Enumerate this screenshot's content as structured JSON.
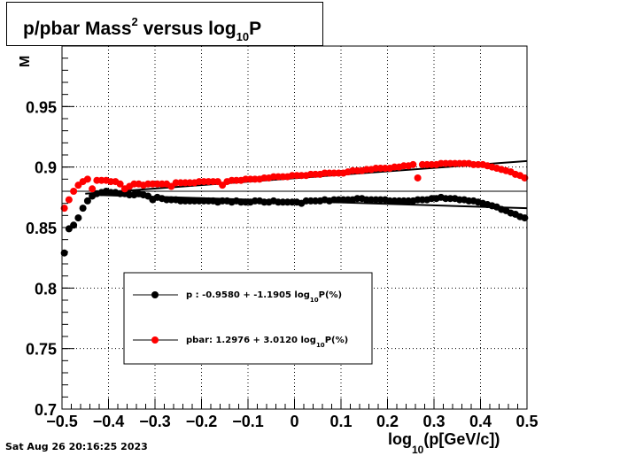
{
  "chart_data": {
    "type": "scatter",
    "title_main": "p/pbar Mass",
    "title_sup": "2",
    "title_mid": " versus log",
    "title_sub": "10",
    "title_end": "P",
    "xlabel_pre": "log",
    "xlabel_sub": "10",
    "xlabel_post": "(p[GeV/c])",
    "ylabel_fragment": "M",
    "xlim": [
      -0.5,
      0.5
    ],
    "ylim": [
      0.7,
      1.0
    ],
    "x_ticks": [
      "-0.5",
      "-0.4",
      "-0.3",
      "-0.2",
      "-0.1",
      "0",
      "0.1",
      "0.2",
      "0.3",
      "0.4",
      "0.5"
    ],
    "y_ticks": [
      "0.7",
      "0.75",
      "0.8",
      "0.85",
      "0.9",
      "0.95"
    ],
    "grid": true,
    "reference_line_y": 0.88,
    "legend_position": "lower-left",
    "series": [
      {
        "name": "p   : -0.9580 + -1.1905 log",
        "legend_sub": "10",
        "legend_end": "P(%)",
        "color": "#000000",
        "x": [
          -0.495,
          -0.485,
          -0.475,
          -0.465,
          -0.455,
          -0.445,
          -0.435,
          -0.425,
          -0.415,
          -0.405,
          -0.395,
          -0.385,
          -0.375,
          -0.365,
          -0.355,
          -0.345,
          -0.335,
          -0.325,
          -0.315,
          -0.305,
          -0.295,
          -0.285,
          -0.275,
          -0.265,
          -0.255,
          -0.245,
          -0.235,
          -0.225,
          -0.215,
          -0.205,
          -0.195,
          -0.185,
          -0.175,
          -0.165,
          -0.155,
          -0.145,
          -0.135,
          -0.125,
          -0.115,
          -0.105,
          -0.095,
          -0.085,
          -0.075,
          -0.065,
          -0.055,
          -0.045,
          -0.035,
          -0.025,
          -0.015,
          -0.005,
          0.005,
          0.015,
          0.025,
          0.035,
          0.045,
          0.055,
          0.065,
          0.075,
          0.085,
          0.095,
          0.105,
          0.115,
          0.125,
          0.135,
          0.145,
          0.155,
          0.165,
          0.175,
          0.185,
          0.195,
          0.205,
          0.215,
          0.225,
          0.235,
          0.245,
          0.255,
          0.265,
          0.275,
          0.285,
          0.295,
          0.305,
          0.315,
          0.325,
          0.335,
          0.345,
          0.355,
          0.365,
          0.375,
          0.385,
          0.395,
          0.405,
          0.415,
          0.425,
          0.435,
          0.445,
          0.455,
          0.465,
          0.475,
          0.485,
          0.495
        ],
        "y": [
          0.829,
          0.849,
          0.852,
          0.858,
          0.866,
          0.872,
          0.876,
          0.878,
          0.879,
          0.88,
          0.879,
          0.879,
          0.878,
          0.878,
          0.877,
          0.877,
          0.878,
          0.877,
          0.876,
          0.873,
          0.875,
          0.874,
          0.873,
          0.873,
          0.873,
          0.872,
          0.872,
          0.872,
          0.872,
          0.872,
          0.872,
          0.872,
          0.872,
          0.871,
          0.872,
          0.872,
          0.871,
          0.872,
          0.871,
          0.871,
          0.871,
          0.872,
          0.872,
          0.871,
          0.871,
          0.872,
          0.871,
          0.871,
          0.871,
          0.871,
          0.871,
          0.87,
          0.872,
          0.872,
          0.872,
          0.872,
          0.873,
          0.872,
          0.873,
          0.873,
          0.873,
          0.873,
          0.873,
          0.874,
          0.874,
          0.873,
          0.873,
          0.873,
          0.873,
          0.873,
          0.872,
          0.872,
          0.872,
          0.872,
          0.872,
          0.872,
          0.873,
          0.873,
          0.873,
          0.874,
          0.874,
          0.875,
          0.874,
          0.874,
          0.874,
          0.873,
          0.873,
          0.872,
          0.872,
          0.871,
          0.87,
          0.869,
          0.868,
          0.867,
          0.865,
          0.864,
          0.862,
          0.861,
          0.859,
          0.858
        ],
        "fit": [
          [
            -0.43,
            0.877
          ],
          [
            0.5,
            0.866
          ]
        ]
      },
      {
        "name": "pbar: 1.2976 + 3.0120 log",
        "legend_sub": "10",
        "legend_end": "P(%)",
        "color": "#ff0000",
        "x": [
          -0.495,
          -0.485,
          -0.475,
          -0.465,
          -0.455,
          -0.445,
          -0.435,
          -0.425,
          -0.415,
          -0.405,
          -0.395,
          -0.385,
          -0.375,
          -0.365,
          -0.355,
          -0.345,
          -0.335,
          -0.325,
          -0.315,
          -0.305,
          -0.295,
          -0.285,
          -0.275,
          -0.265,
          -0.255,
          -0.245,
          -0.235,
          -0.225,
          -0.215,
          -0.205,
          -0.195,
          -0.185,
          -0.175,
          -0.165,
          -0.155,
          -0.145,
          -0.135,
          -0.125,
          -0.115,
          -0.105,
          -0.095,
          -0.085,
          -0.075,
          -0.065,
          -0.055,
          -0.045,
          -0.035,
          -0.025,
          -0.015,
          -0.005,
          0.005,
          0.015,
          0.025,
          0.035,
          0.045,
          0.055,
          0.065,
          0.075,
          0.085,
          0.095,
          0.105,
          0.115,
          0.125,
          0.135,
          0.145,
          0.155,
          0.165,
          0.175,
          0.185,
          0.195,
          0.205,
          0.215,
          0.225,
          0.235,
          0.245,
          0.255,
          0.265,
          0.275,
          0.285,
          0.295,
          0.305,
          0.315,
          0.325,
          0.335,
          0.345,
          0.355,
          0.365,
          0.375,
          0.385,
          0.395,
          0.405,
          0.415,
          0.425,
          0.435,
          0.445,
          0.455,
          0.465,
          0.475,
          0.485,
          0.495
        ],
        "y": [
          0.866,
          0.873,
          0.88,
          0.885,
          0.888,
          0.89,
          0.882,
          0.889,
          0.889,
          0.889,
          0.888,
          0.888,
          0.886,
          0.882,
          0.884,
          0.886,
          0.886,
          0.885,
          0.886,
          0.886,
          0.886,
          0.886,
          0.886,
          0.884,
          0.887,
          0.887,
          0.887,
          0.887,
          0.887,
          0.888,
          0.888,
          0.888,
          0.888,
          0.888,
          0.885,
          0.888,
          0.889,
          0.889,
          0.889,
          0.89,
          0.89,
          0.89,
          0.89,
          0.891,
          0.891,
          0.892,
          0.892,
          0.892,
          0.892,
          0.893,
          0.893,
          0.893,
          0.893,
          0.894,
          0.894,
          0.894,
          0.895,
          0.895,
          0.895,
          0.895,
          0.895,
          0.896,
          0.897,
          0.897,
          0.897,
          0.898,
          0.898,
          0.899,
          0.899,
          0.899,
          0.899,
          0.9,
          0.9,
          0.901,
          0.901,
          0.902,
          0.891,
          0.902,
          0.902,
          0.902,
          0.902,
          0.903,
          0.903,
          0.903,
          0.903,
          0.903,
          0.903,
          0.903,
          0.902,
          0.902,
          0.902,
          0.901,
          0.9,
          0.899,
          0.898,
          0.897,
          0.896,
          0.894,
          0.893,
          0.891
        ],
        "fit": [
          [
            -0.45,
            0.878
          ],
          [
            0.5,
            0.905
          ]
        ]
      }
    ]
  },
  "footer": {
    "timestamp": "Sat Aug 26 20:16:25 2023"
  }
}
